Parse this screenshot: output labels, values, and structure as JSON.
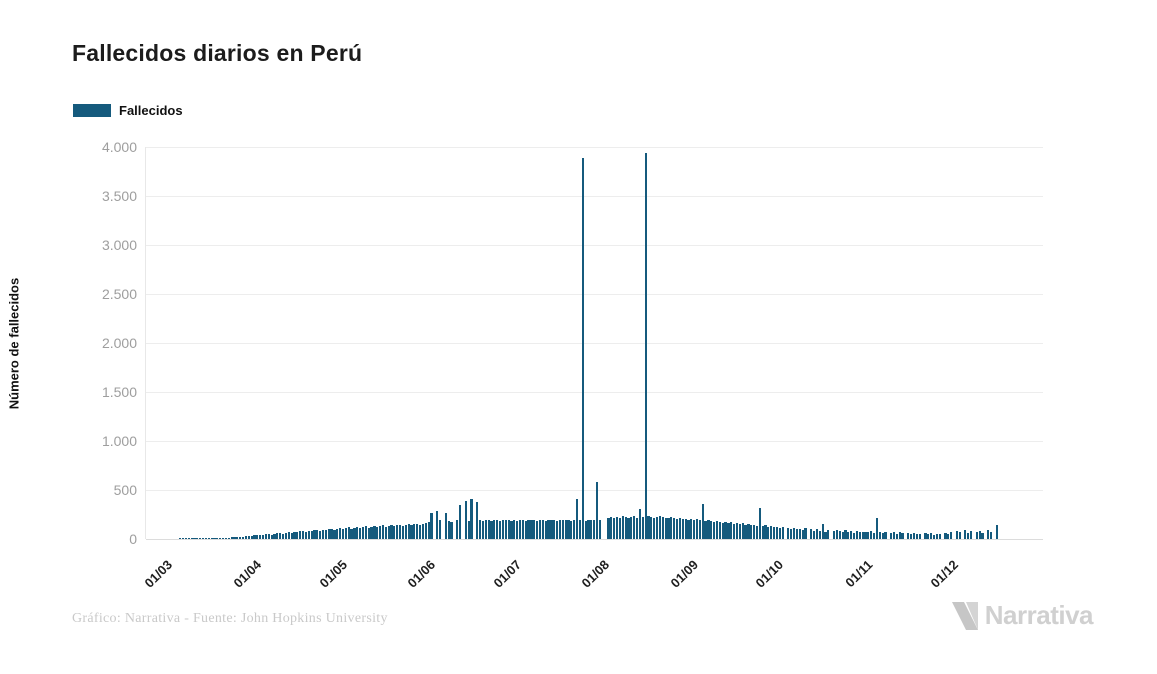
{
  "title": "Fallecidos diarios en Perú",
  "legend": {
    "label": "Fallecidos",
    "color": "#155a7d"
  },
  "footer": {
    "credit": "Gráfico: Narrativa - Fuente: John Hopkins University",
    "brand": "Narrativa"
  },
  "colors": {
    "bar": "#155a7d",
    "grid": "#ededed",
    "tick_text": "#9e9e9e"
  },
  "chart_data": {
    "type": "bar",
    "title": "Fallecidos diarios en Perú",
    "xlabel": "",
    "ylabel": "Número de fallecidos",
    "ylim": [
      0,
      4000
    ],
    "grid": "horizontal",
    "legend_position": "top-left",
    "y_ticks": [
      {
        "v": 0,
        "label": "0"
      },
      {
        "v": 500,
        "label": "500"
      },
      {
        "v": 1000,
        "label": "1.000"
      },
      {
        "v": 1500,
        "label": "1.500"
      },
      {
        "v": 2000,
        "label": "2.000"
      },
      {
        "v": 2500,
        "label": "2.500"
      },
      {
        "v": 3000,
        "label": "3.000"
      },
      {
        "v": 3500,
        "label": "3.500"
      },
      {
        "v": 4000,
        "label": "4.000"
      }
    ],
    "months": [
      {
        "label": "01/03",
        "days": 31
      },
      {
        "label": "01/04",
        "days": 30
      },
      {
        "label": "01/05",
        "days": 31
      },
      {
        "label": "01/06",
        "days": 30
      },
      {
        "label": "01/07",
        "days": 31
      },
      {
        "label": "01/08",
        "days": 31
      },
      {
        "label": "01/09",
        "days": 30
      },
      {
        "label": "01/10",
        "days": 31
      },
      {
        "label": "01/11",
        "days": 30
      },
      {
        "label": "01/12",
        "days": 31
      }
    ],
    "series": [
      {
        "name": "Fallecidos",
        "color": "#155a7d",
        "start_label": "01/03",
        "values": [
          0,
          0,
          0,
          0,
          0,
          3,
          2,
          4,
          3,
          5,
          4,
          6,
          5,
          8,
          6,
          9,
          8,
          11,
          10,
          13,
          12,
          15,
          14,
          18,
          16,
          20,
          22,
          25,
          28,
          32,
          35,
          38,
          42,
          36,
          45,
          48,
          52,
          46,
          55,
          58,
          62,
          56,
          65,
          70,
          64,
          75,
          68,
          78,
          82,
          74,
          85,
          78,
          88,
          92,
          84,
          95,
          88,
          98,
          102,
          94,
          105,
          108,
          98,
          112,
          118,
          104,
          115,
          124,
          110,
          120,
          128,
          114,
          126,
          132,
          118,
          130,
          138,
          124,
          134,
          142,
          128,
          140,
          148,
          134,
          144,
          152,
          138,
          150,
          158,
          144,
          154,
          162,
          178,
          268,
          0,
          282,
          192,
          0,
          262,
          186,
          176,
          0,
          196,
          352,
          0,
          388,
          186,
          404,
          0,
          378,
          192,
          186,
          196,
          190,
          186,
          194,
          190,
          186,
          192,
          196,
          190,
          186,
          192,
          186,
          196,
          190,
          186,
          194,
          190,
          198,
          186,
          192,
          196,
          186,
          190,
          194,
          190,
          186,
          192,
          196,
          198,
          192,
          186,
          196,
          408,
          190,
          3888,
          186,
          196,
          190,
          198,
          586,
          192,
          0,
          0,
          212,
          222,
          216,
          226,
          210,
          230,
          222,
          216,
          226,
          232,
          212,
          306,
          222,
          3935,
          232,
          226,
          216,
          222,
          230,
          226,
          216,
          212,
          222,
          216,
          206,
          212,
          202,
          206,
          196,
          202,
          196,
          206,
          192,
          354,
          186,
          192,
          182,
          176,
          186,
          172,
          166,
          176,
          162,
          172,
          156,
          166,
          152,
          162,
          146,
          152,
          142,
          146,
          136,
          314,
          132,
          142,
          126,
          136,
          122,
          126,
          116,
          122,
          0,
          112,
          106,
          112,
          102,
          106,
          96,
          112,
          0,
          106,
          86,
          102,
          82,
          150,
          76,
          92,
          0,
          86,
          96,
          82,
          76,
          92,
          72,
          86,
          66,
          82,
          76,
          72,
          76,
          72,
          82,
          66,
          216,
          76,
          62,
          72,
          0,
          66,
          76,
          56,
          72,
          62,
          0,
          66,
          56,
          62,
          52,
          56,
          0,
          62,
          52,
          66,
          46,
          56,
          52,
          0,
          62,
          56,
          72,
          0,
          86,
          76,
          0,
          92,
          66,
          82,
          0,
          72,
          86,
          62,
          0,
          96,
          72,
          0,
          142
        ]
      }
    ]
  }
}
